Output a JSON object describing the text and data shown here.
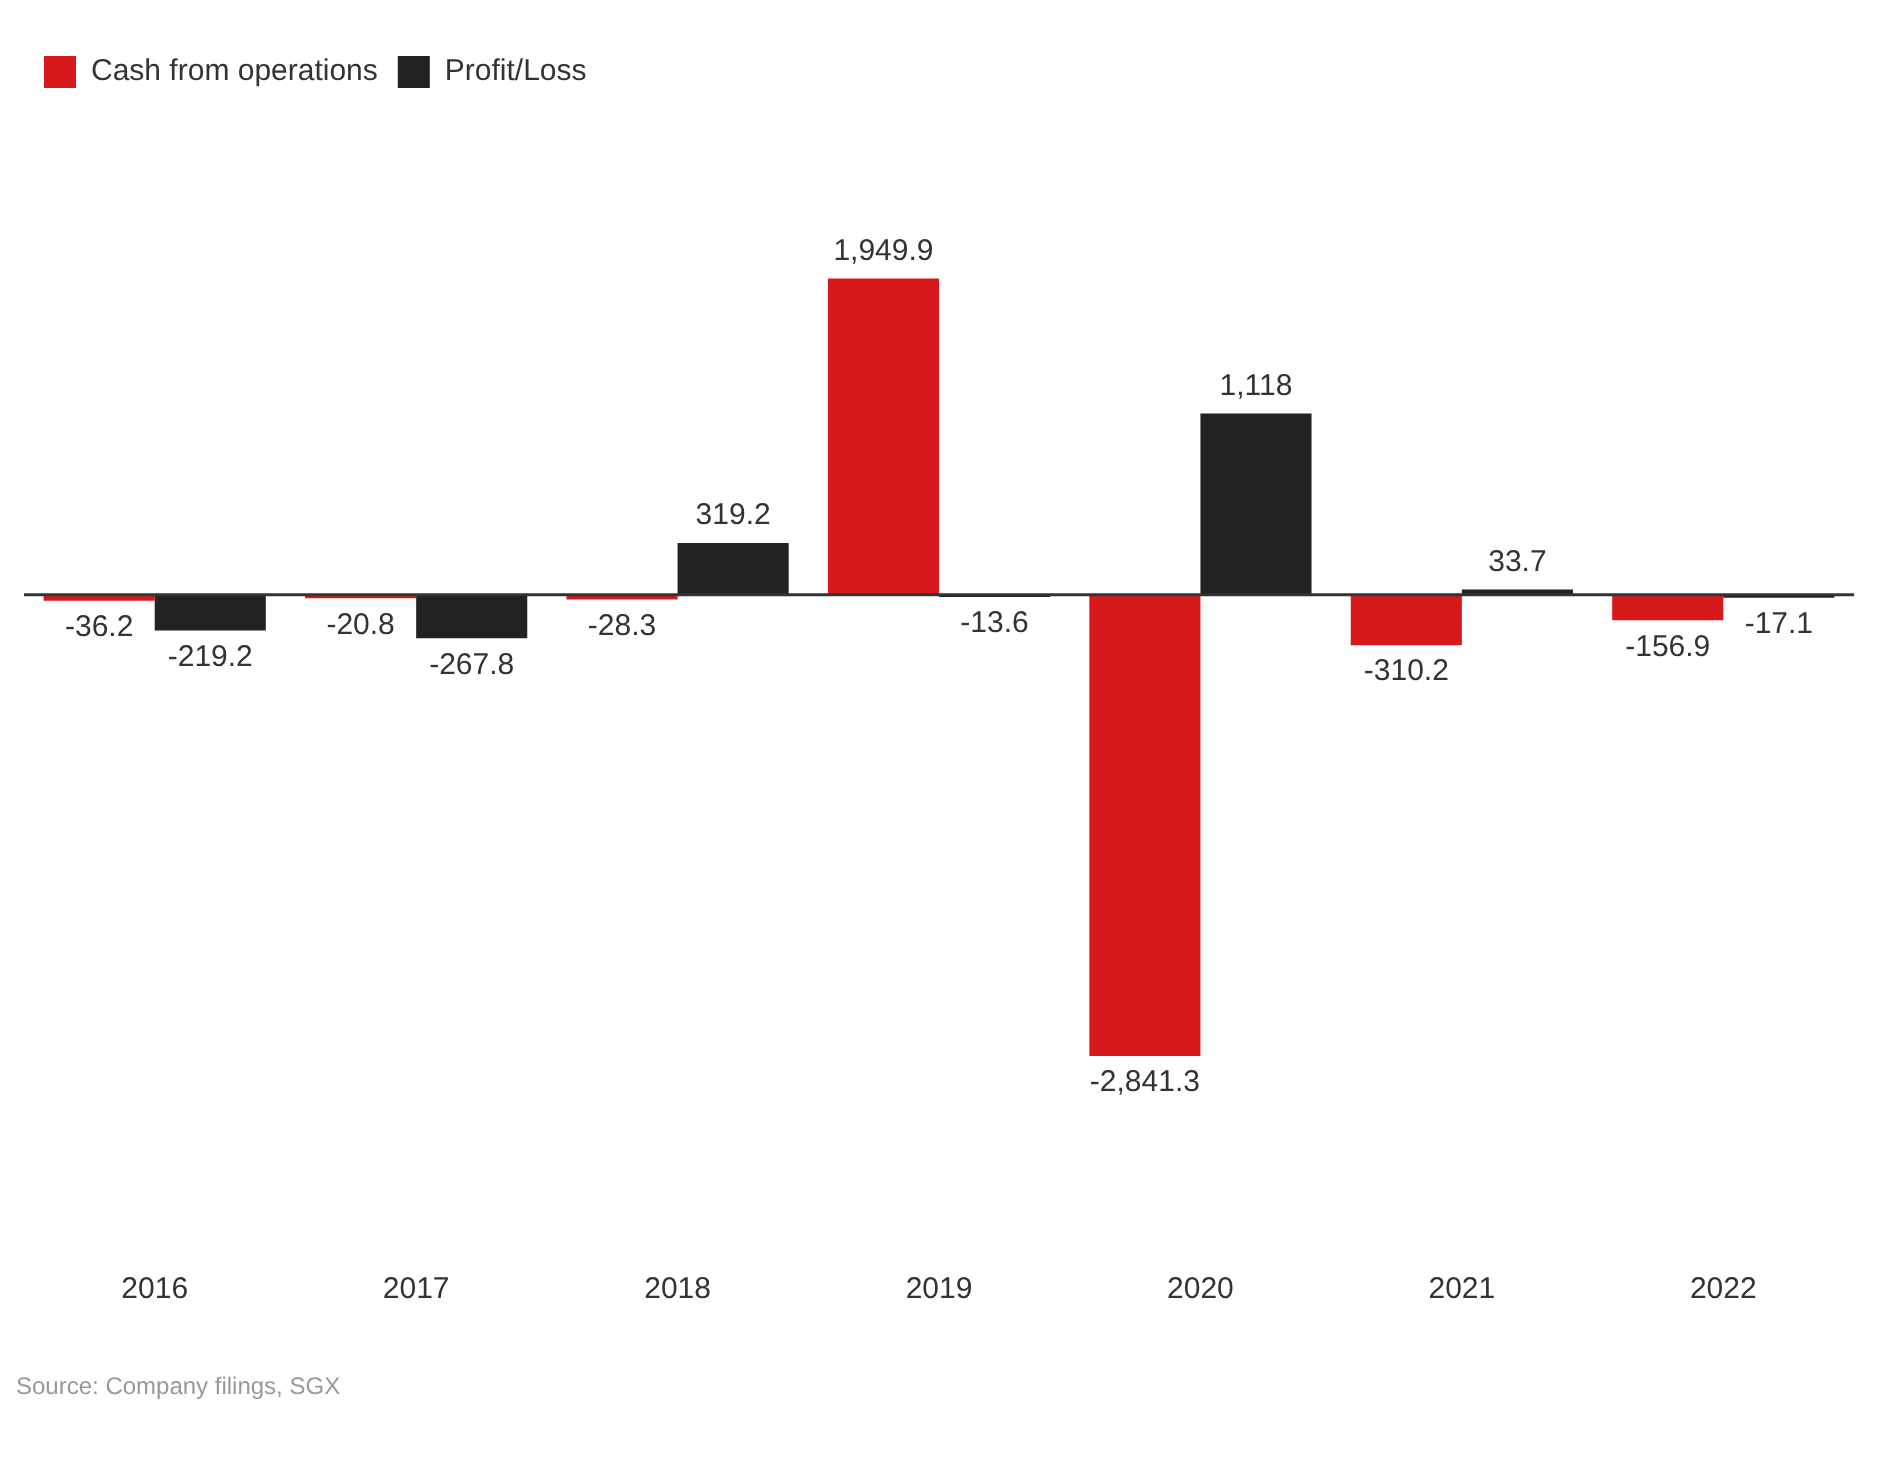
{
  "chart_data": {
    "type": "bar",
    "categories": [
      "2016",
      "2017",
      "2018",
      "2019",
      "2020",
      "2021",
      "2022"
    ],
    "series": [
      {
        "name": "Cash from operations",
        "color": "#d7191c",
        "values": [
          -36.2,
          -20.8,
          -28.3,
          1949.9,
          -2841.3,
          -310.2,
          -156.9
        ],
        "value_labels": [
          "-36.2",
          "-20.8",
          "-28.3",
          "1,949.9",
          "-2,841.3",
          "-310.2",
          "-156.9"
        ]
      },
      {
        "name": "Profit/Loss",
        "color": "#222222",
        "values": [
          -219.2,
          -267.8,
          319.2,
          -13.6,
          1118,
          33.7,
          -17.1
        ],
        "value_labels": [
          "-219.2",
          "-267.8",
          "319.2",
          "-13.6",
          "1,118",
          "33.7",
          "-17.1"
        ]
      }
    ],
    "legend": "top left",
    "grid": false,
    "tick_labels": "x",
    "annotations": [
      "Source: Company filings, SGX"
    ]
  }
}
